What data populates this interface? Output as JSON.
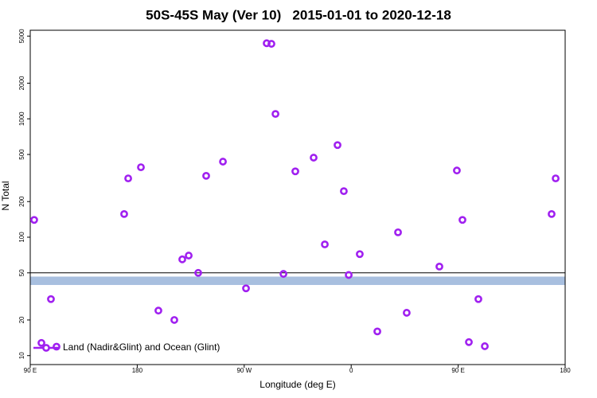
{
  "chart_data": {
    "type": "scatter",
    "title": "50S-45S May (Ver 10)   2015-01-01 to 2020-12-18",
    "x_label": "Longitude (deg E)",
    "y_label": "N Total",
    "log_y": true,
    "xlim": [
      90,
      540
    ],
    "ylim": [
      8.4,
      5600
    ],
    "xticks": [
      {
        "value": 90,
        "label": "90 E"
      },
      180,
      {
        "value": 270,
        "label": "90 W"
      },
      {
        "value": 360,
        "label": "0"
      },
      {
        "value": 450,
        "label": "90 E"
      },
      {
        "value": 540,
        "label": "180"
      }
    ],
    "yticks": [
      10,
      20,
      50,
      100,
      200,
      500,
      1000,
      2000,
      5000
    ],
    "reference_line": 50,
    "band": {
      "ylim": [
        39.5,
        46.5
      ],
      "color": "#a8bfdf"
    },
    "legend": "bottom-left",
    "series": [
      {
        "name": "Land (Nadir&Glint) and Ocean (Glint)",
        "color": "#a020f0",
        "x": [
          93.3,
          99.4,
          107.4,
          112.1,
          169.0,
          172.4,
          183.1,
          197.8,
          211.2,
          217.9,
          223.3,
          231.3,
          238.0,
          252.1,
          271.5,
          288.9,
          292.9,
          296.3,
          303.0,
          313.0,
          328.4,
          337.8,
          348.5,
          353.8,
          357.9,
          367.2,
          382.0,
          399.4,
          406.7,
          434.2,
          448.9,
          453.6,
          459.0,
          467.0,
          472.4,
          528.6,
          532.0
        ],
        "values": [
          140,
          12.8,
          30,
          11.9,
          157,
          314,
          390,
          24,
          20,
          65,
          70,
          50,
          330,
          435,
          37,
          4350,
          4300,
          1100,
          49,
          360,
          470,
          87,
          600,
          245,
          48,
          72,
          16,
          110,
          23,
          56.5,
          366,
          140,
          13,
          30,
          12,
          157,
          314
        ]
      }
    ]
  }
}
